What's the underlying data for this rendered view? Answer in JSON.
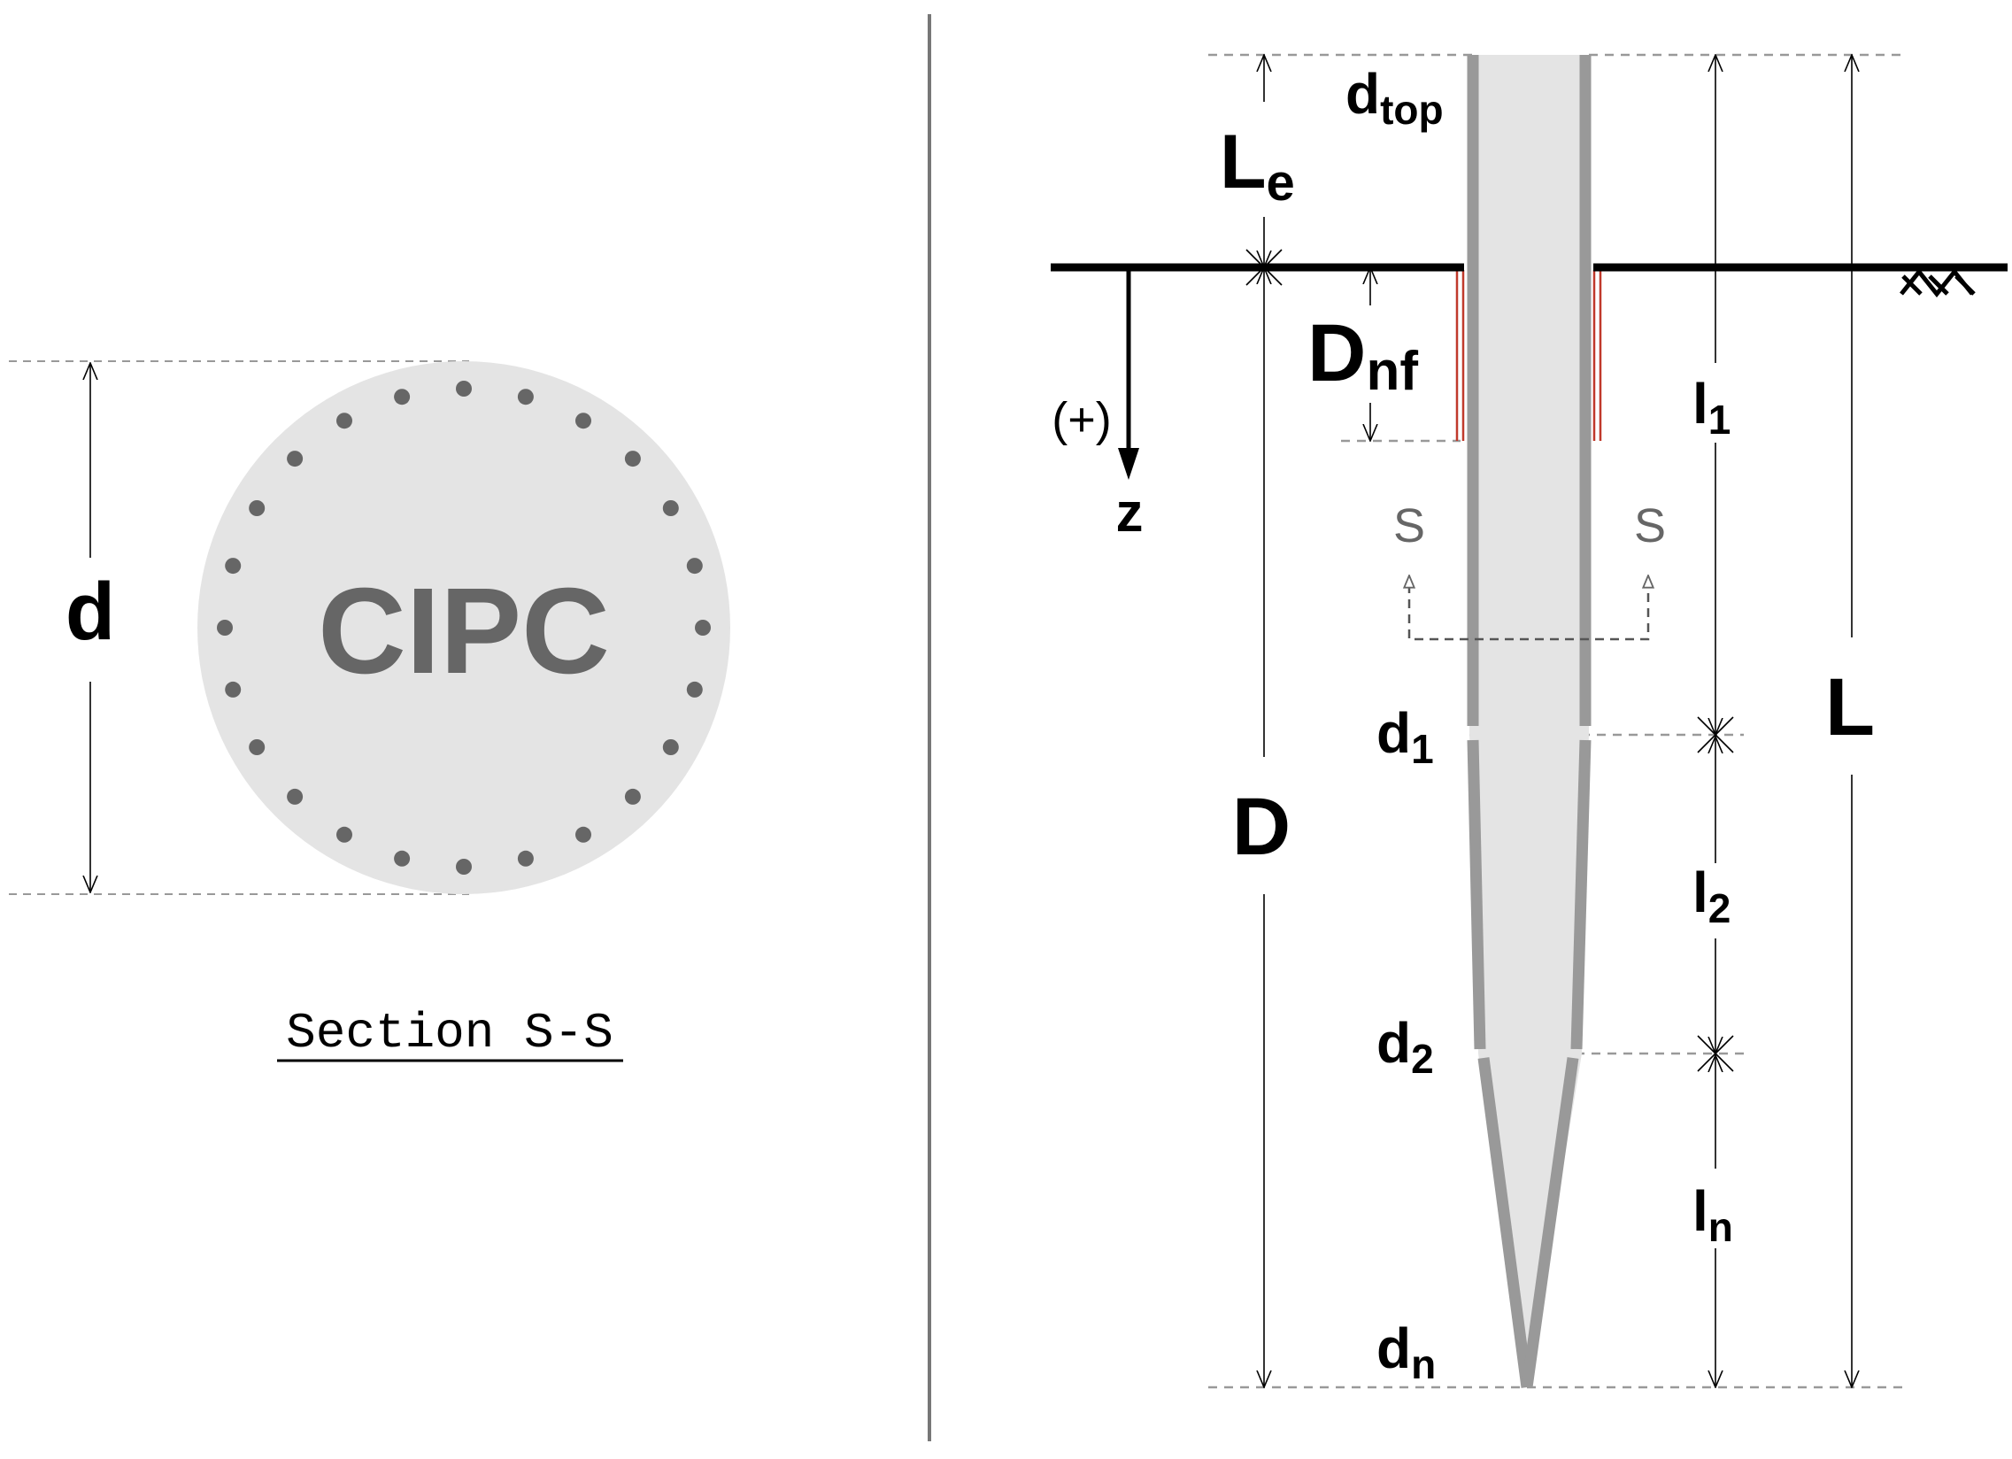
{
  "section_view": {
    "center_label": "CIPC",
    "diameter_label": "d",
    "caption": "Section S-S"
  },
  "elevation_view": {
    "d_top": {
      "main": "d",
      "sub": "top"
    },
    "L_e": {
      "main": "L",
      "sub": "e"
    },
    "D_nf": {
      "main": "D",
      "sub": "nf"
    },
    "z_axis": {
      "sign": "(+)",
      "label": "z"
    },
    "section_marks": [
      "S",
      "S"
    ],
    "d_1": {
      "main": "d",
      "sub": "1"
    },
    "d_2": {
      "main": "d",
      "sub": "2"
    },
    "d_n": {
      "main": "d",
      "sub": "n"
    },
    "l_1": {
      "main": "l",
      "sub": "1"
    },
    "l_2": {
      "main": "l",
      "sub": "2"
    },
    "l_n": {
      "main": "l",
      "sub": "n"
    },
    "L": "L",
    "D": "D"
  },
  "colors": {
    "pile_fill": "#e4e4e4",
    "pile_wall": "#999999",
    "dots": "#666666",
    "neg_friction": "#c0392b",
    "dashed": "#999999"
  }
}
